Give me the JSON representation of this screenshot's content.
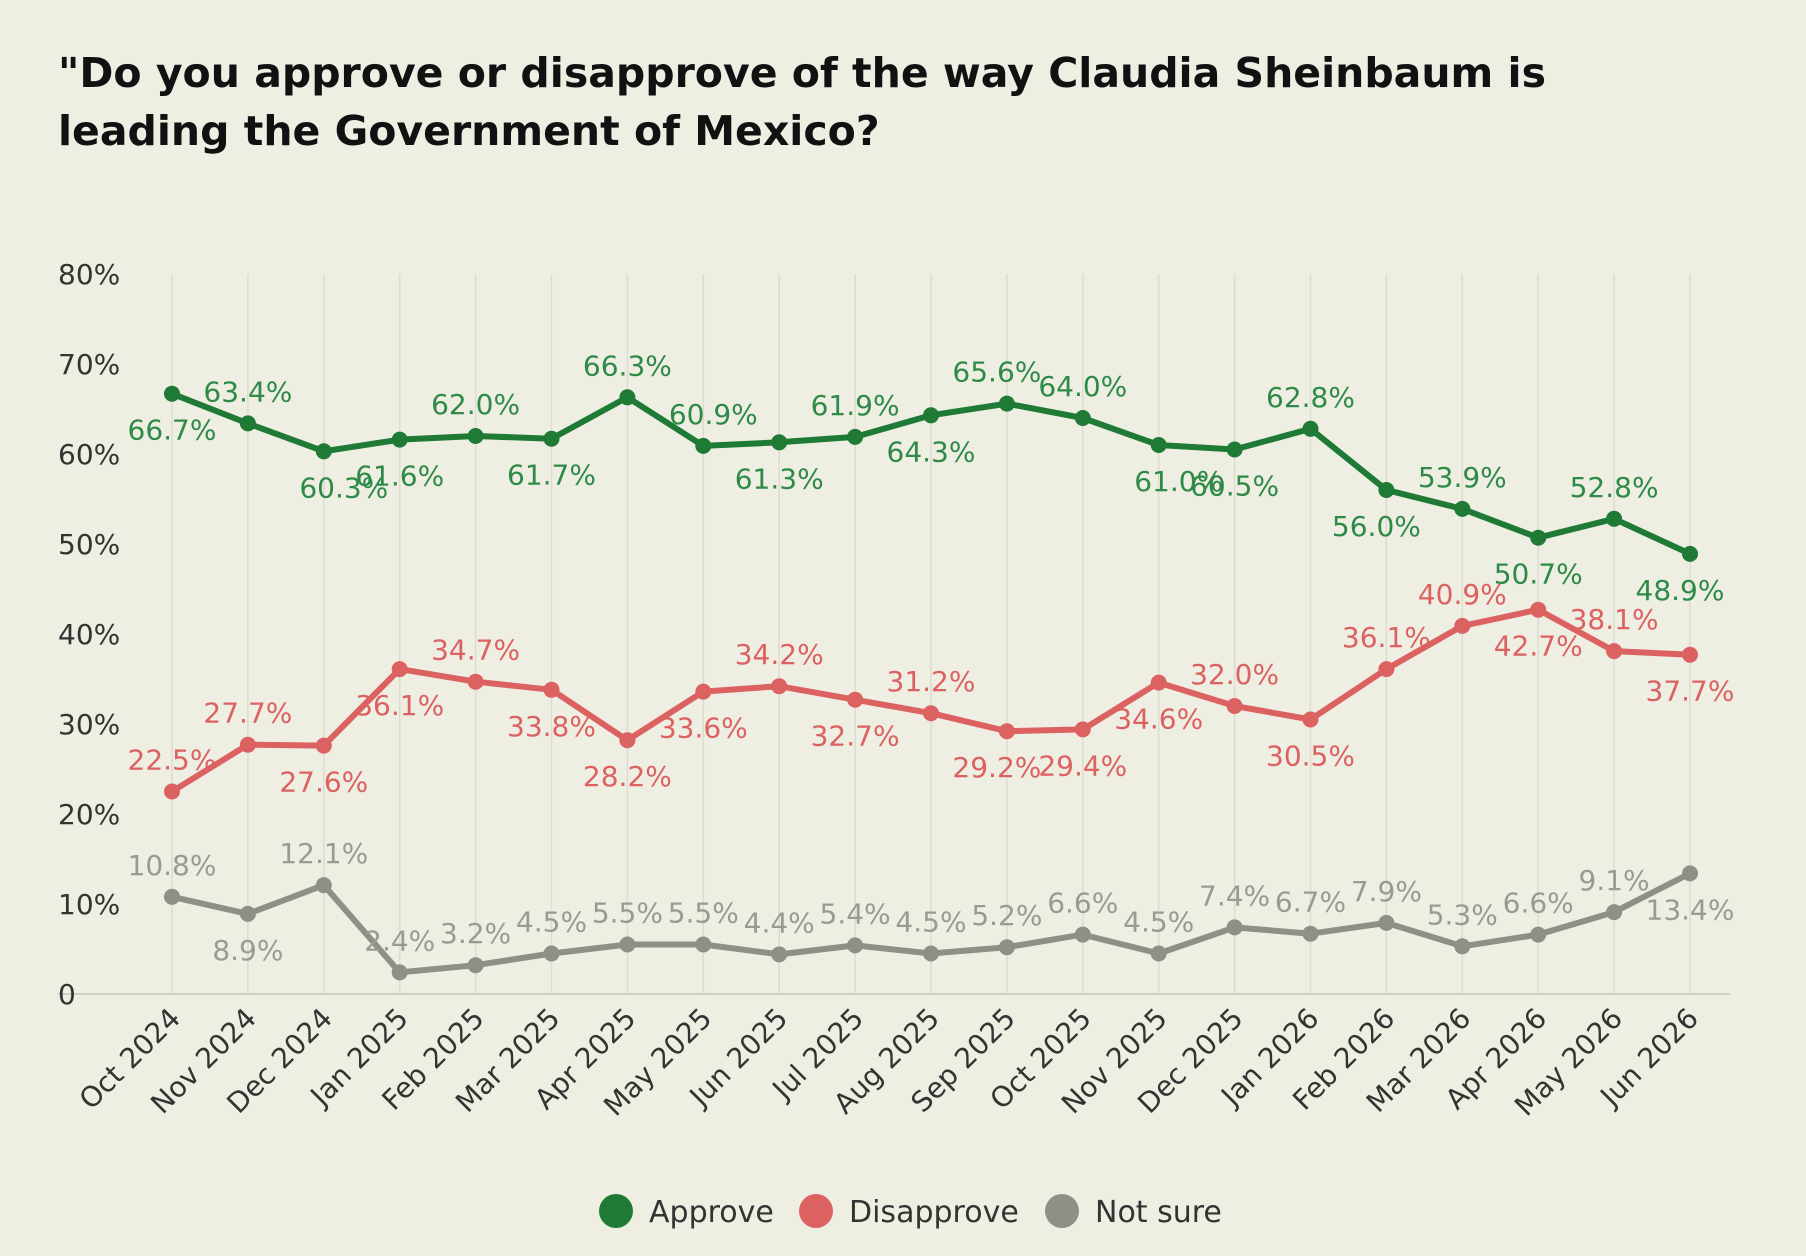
{
  "chart_data": {
    "type": "line",
    "title": "\"Do you approve or disapprove of the way Claudia Sheinbaum is leading the Government of Mexico?",
    "x": [
      "Oct 2024",
      "Nov 2024",
      "Dec 2024",
      "Jan 2025",
      "Feb 2025",
      "Mar 2025",
      "Apr 2025",
      "May 2025",
      "Jun 2025",
      "Jul 2025",
      "Aug 2025",
      "Sep 2025",
      "Oct 2025",
      "Nov 2025",
      "Dec 2025",
      "Jan 2026",
      "Feb 2026",
      "Mar 2026",
      "Apr 2026",
      "May 2026",
      "Jun 2026"
    ],
    "ylim": [
      0,
      80
    ],
    "yticks": [
      {
        "value": 0,
        "label": "0"
      },
      {
        "value": 10,
        "label": "10%"
      },
      {
        "value": 20,
        "label": "20%"
      },
      {
        "value": 30,
        "label": "30%"
      },
      {
        "value": 40,
        "label": "40%"
      },
      {
        "value": 50,
        "label": "50%"
      },
      {
        "value": 60,
        "label": "60%"
      },
      {
        "value": 70,
        "label": "70%"
      },
      {
        "value": 80,
        "label": "80%"
      }
    ],
    "grid": "vertical",
    "legend_position": "bottom",
    "series": [
      {
        "name": "Approve",
        "color": "#1e7a34",
        "label_color": "#2e8b47",
        "values": [
          66.7,
          63.4,
          60.3,
          61.6,
          62.0,
          61.7,
          66.3,
          60.9,
          61.3,
          61.9,
          64.3,
          65.6,
          64.0,
          61.0,
          60.5,
          62.8,
          56.0,
          53.9,
          50.7,
          52.8,
          48.9
        ],
        "labels": [
          "66.7%",
          "63.4%",
          "60.3%",
          "61.6%",
          "62.0%",
          "61.7%",
          "66.3%",
          "60.9%",
          "61.3%",
          "61.9%",
          "64.3%",
          "65.6%",
          "64.0%",
          "61.0%",
          "60.5%",
          "62.8%",
          "56.0%",
          "53.9%",
          "50.7%",
          "52.8%",
          "48.9%"
        ]
      },
      {
        "name": "Disapprove",
        "color": "#dc6161",
        "label_color": "#dc6161",
        "values": [
          22.5,
          27.7,
          27.6,
          36.1,
          34.7,
          33.8,
          28.2,
          33.6,
          34.2,
          32.7,
          31.2,
          29.2,
          29.4,
          34.6,
          32.0,
          30.5,
          36.1,
          40.9,
          42.7,
          38.1,
          37.7
        ],
        "labels": [
          "22.5%",
          "27.7%",
          "27.6%",
          "36.1%",
          "34.7%",
          "33.8%",
          "28.2%",
          "33.6%",
          "34.2%",
          "32.7%",
          "31.2%",
          "29.2%",
          "29.4%",
          "34.6%",
          "32.0%",
          "30.5%",
          "36.1%",
          "40.9%",
          "42.7%",
          "38.1%",
          "37.7%"
        ]
      },
      {
        "name": "Not sure",
        "color": "#8f8f86",
        "label_color": "#9a9a92",
        "values": [
          10.8,
          8.9,
          12.1,
          2.4,
          3.2,
          4.5,
          5.5,
          5.5,
          4.4,
          5.4,
          4.5,
          5.2,
          6.6,
          4.5,
          7.4,
          6.7,
          7.9,
          5.3,
          6.6,
          9.1,
          13.4
        ],
        "labels": [
          "10.8%",
          "8.9%",
          "12.1%",
          "2.4%",
          "3.2%",
          "4.5%",
          "5.5%",
          "5.5%",
          "4.4%",
          "5.4%",
          "4.5%",
          "5.2%",
          "6.6%",
          "4.5%",
          "7.4%",
          "6.7%",
          "7.9%",
          "5.3%",
          "6.6%",
          "9.1%",
          "13.4%"
        ]
      }
    ]
  }
}
